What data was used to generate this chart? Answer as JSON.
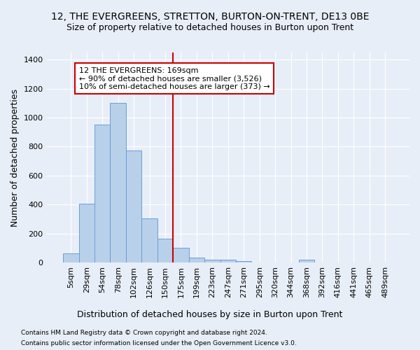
{
  "title": "12, THE EVERGREENS, STRETTON, BURTON-ON-TRENT, DE13 0BE",
  "subtitle": "Size of property relative to detached houses in Burton upon Trent",
  "xlabel": "Distribution of detached houses by size in Burton upon Trent",
  "ylabel": "Number of detached properties",
  "footnote1": "Contains HM Land Registry data © Crown copyright and database right 2024.",
  "footnote2": "Contains public sector information licensed under the Open Government Licence v3.0.",
  "bar_labels": [
    "5sqm",
    "29sqm",
    "54sqm",
    "78sqm",
    "102sqm",
    "126sqm",
    "150sqm",
    "175sqm",
    "199sqm",
    "223sqm",
    "247sqm",
    "271sqm",
    "295sqm",
    "320sqm",
    "344sqm",
    "368sqm",
    "392sqm",
    "416sqm",
    "441sqm",
    "465sqm",
    "489sqm"
  ],
  "bar_values": [
    65,
    408,
    950,
    1100,
    775,
    305,
    165,
    100,
    35,
    18,
    18,
    10,
    0,
    0,
    0,
    18,
    0,
    0,
    0,
    0,
    0
  ],
  "bar_color": "#b8d0ea",
  "bar_edge_color": "#6a9fd8",
  "vline_x_index": 7,
  "vline_color": "#cc0000",
  "annotation_line1": "12 THE EVERGREENS: 169sqm",
  "annotation_line2": "← 90% of detached houses are smaller (3,526)",
  "annotation_line3": "10% of semi-detached houses are larger (373) →",
  "annotation_box_color": "white",
  "annotation_box_edge": "#cc0000",
  "ylim": [
    0,
    1450
  ],
  "yticks": [
    0,
    200,
    400,
    600,
    800,
    1000,
    1200,
    1400
  ],
  "background_color": "#e8eef7",
  "grid_color": "white",
  "title_fontsize": 10,
  "subtitle_fontsize": 9,
  "xlabel_fontsize": 9,
  "ylabel_fontsize": 9,
  "tick_fontsize": 8
}
